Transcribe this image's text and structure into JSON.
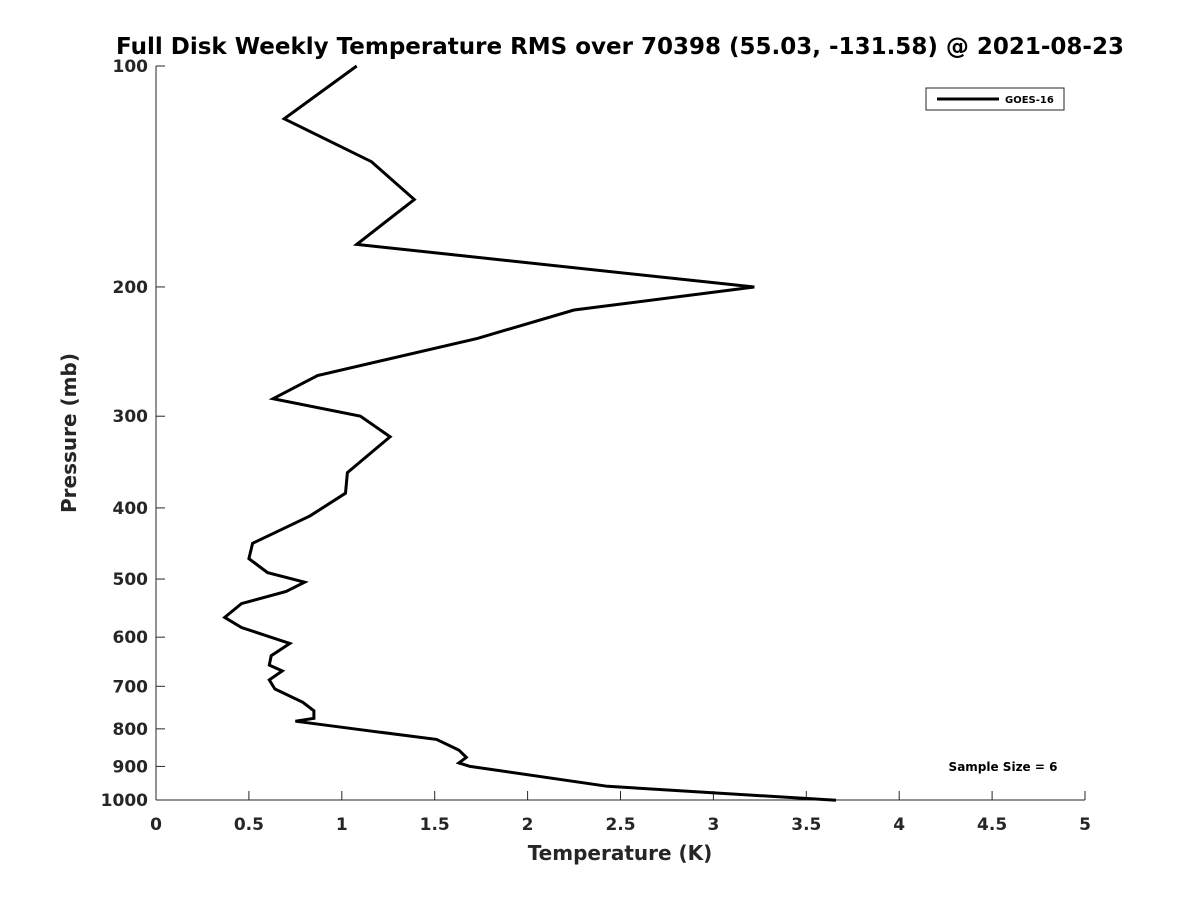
{
  "chart_data": {
    "type": "line",
    "title": "Full Disk Weekly Temperature RMS over 70398 (55.03, -131.58) @ 2021-08-23",
    "xlabel": "Temperature (K)",
    "ylabel": "Pressure (mb)",
    "xlim": [
      0,
      5
    ],
    "ylim": [
      100,
      1000
    ],
    "yscale": "log",
    "y_reversed": true,
    "xticks": [
      0,
      0.5,
      1,
      1.5,
      2,
      2.5,
      3,
      3.5,
      4,
      4.5,
      5
    ],
    "xtick_labels": [
      "0",
      "0.5",
      "1",
      "1.5",
      "2",
      "2.5",
      "3",
      "3.5",
      "4",
      "4.5",
      "5"
    ],
    "yticks": [
      100,
      200,
      300,
      400,
      500,
      600,
      700,
      800,
      900,
      1000
    ],
    "ytick_labels": [
      "100",
      "200",
      "300",
      "400",
      "500",
      "600",
      "700",
      "800",
      "900",
      "1000"
    ],
    "grid": false,
    "legend_position": "top-right",
    "annotation": "Sample Size = 6",
    "series": [
      {
        "name": "GOES-16",
        "color": "#000000",
        "x": [
          1.08,
          0.69,
          1.16,
          1.39,
          1.08,
          3.22,
          2.25,
          1.73,
          0.87,
          0.63,
          1.1,
          1.26,
          1.03,
          1.02,
          0.83,
          0.52,
          0.5,
          0.6,
          0.8,
          0.7,
          0.46,
          0.37,
          0.46,
          0.72,
          0.62,
          0.61,
          0.68,
          0.61,
          0.64,
          0.79,
          0.85,
          0.85,
          0.75,
          1.1,
          1.51,
          1.63,
          1.67,
          1.63,
          1.69,
          2.43,
          3.66
        ],
        "y": [
          100,
          118,
          135,
          152,
          175,
          200,
          215,
          235,
          264,
          284,
          300,
          320,
          358,
          382,
          410,
          447,
          469,
          490,
          505,
          520,
          540,
          564,
          582,
          612,
          636,
          655,
          667,
          686,
          706,
          736,
          756,
          774,
          781,
          802,
          827,
          855,
          875,
          890,
          900,
          958,
          1001
        ]
      }
    ]
  }
}
